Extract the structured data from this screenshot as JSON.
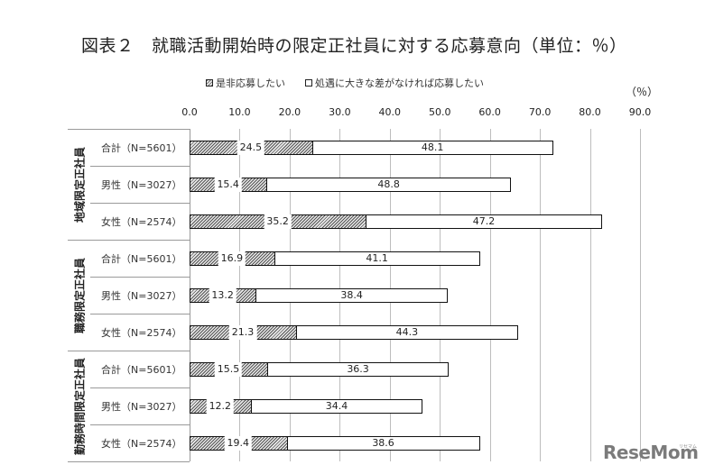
{
  "title": "図表２　就職活動開始時の限定正社員に対する応募意向（単位：％）",
  "legend": [
    {
      "label": "是非応募したい",
      "style": "hatched"
    },
    {
      "label": "処遇に大きな差がなければ応募したい",
      "style": "open"
    }
  ],
  "unit": "（％）",
  "watermark": {
    "text": "ReseMom",
    "sub": "リセマム"
  },
  "chart_data": {
    "type": "bar",
    "orientation": "horizontal",
    "stacked": true,
    "title": "図表２　就職活動開始時の限定正社員に対する応募意向（単位：％）",
    "xlabel": "（％）",
    "ylabel": "",
    "xlim": [
      0,
      90
    ],
    "xticks": [
      "0.0",
      "10.0",
      "20.0",
      "30.0",
      "40.0",
      "50.0",
      "60.0",
      "70.0",
      "80.0",
      "90.0"
    ],
    "grid": true,
    "legend_position": "top",
    "groups": [
      {
        "name": "地域限定正社員",
        "categories": [
          "合計（N=5601）",
          "男性（N=3027）",
          "女性（N=2574）"
        ]
      },
      {
        "name": "職務限定正社員",
        "categories": [
          "合計（N=5601）",
          "男性（N=3027）",
          "女性（N=2574）"
        ]
      },
      {
        "name": "勤務時間限定正社員",
        "categories": [
          "合計（N=5601）",
          "男性（N=3027）",
          "女性（N=2574）"
        ]
      }
    ],
    "categories": [
      "地域限定正社員 合計（N=5601）",
      "地域限定正社員 男性（N=3027）",
      "地域限定正社員 女性（N=2574）",
      "職務限定正社員 合計（N=5601）",
      "職務限定正社員 男性（N=3027）",
      "職務限定正社員 女性（N=2574）",
      "勤務時間限定正社員 合計（N=5601）",
      "勤務時間限定正社員 男性（N=3027）",
      "勤務時間限定正社員 女性（N=2574）"
    ],
    "series": [
      {
        "name": "是非応募したい",
        "values": [
          24.5,
          15.4,
          35.2,
          16.9,
          13.2,
          21.3,
          15.5,
          12.2,
          19.4
        ]
      },
      {
        "name": "処遇に大きな差がなければ応募したい",
        "values": [
          48.1,
          48.8,
          47.2,
          41.1,
          38.4,
          44.3,
          36.3,
          34.4,
          38.6
        ]
      }
    ]
  }
}
